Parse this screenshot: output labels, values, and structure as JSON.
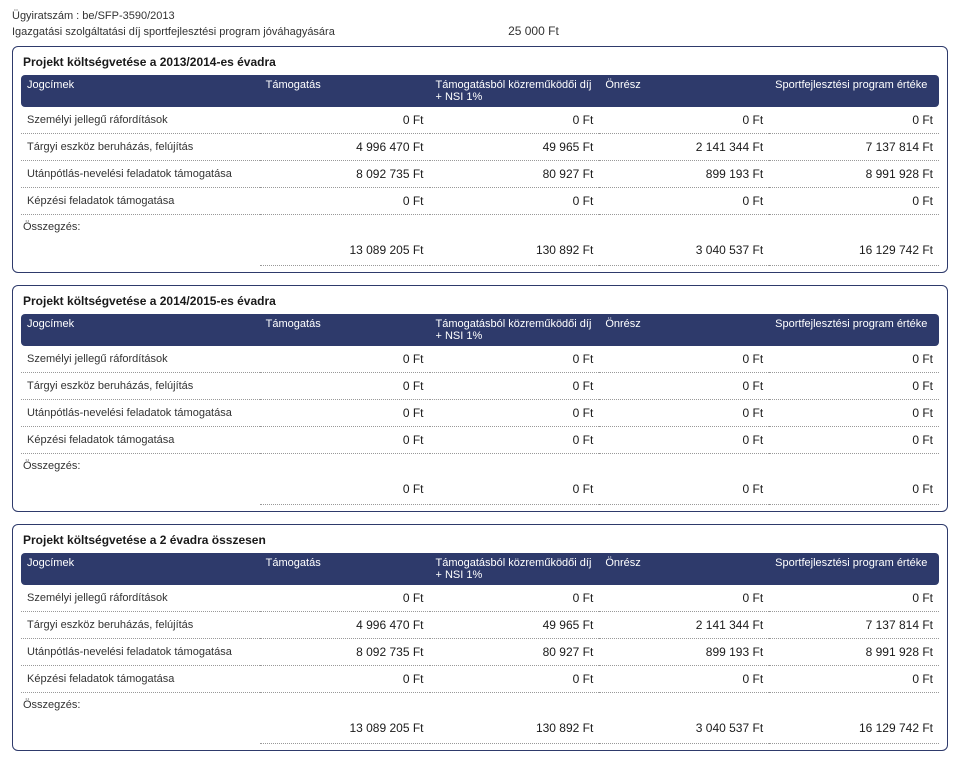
{
  "header": {
    "case_no_label": "Ügyiratszám : be/SFP-3590/2013",
    "fee_label": "Igazgatási szolgáltatási díj sportfejlesztési program jóváhagyására",
    "fee_value": "25 000 Ft"
  },
  "colwidths": {
    "label": "26%",
    "v": "18.5%"
  },
  "columns": {
    "c1": "Jogcímek",
    "c2": "Támogatás",
    "c3": "Támogatásból közreműködői díj + NSI 1%",
    "c4": "Önrész",
    "c5": "Sportfejlesztési program értéke"
  },
  "rows": {
    "r1": "Személyi jellegű ráfordítások",
    "r2": "Tárgyi eszköz beruházás, felújítás",
    "r3": "Utánpótlás-nevelési feladatok támogatása",
    "r4": "Képzési feladatok támogatása"
  },
  "summary_label": "Összegzés:",
  "sections": [
    {
      "title": "Projekt költségvetése a 2013/2014-es évadra",
      "data": {
        "r1": {
          "c2": "0 Ft",
          "c3": "0 Ft",
          "c4": "0 Ft",
          "c5": "0 Ft"
        },
        "r2": {
          "c2": "4 996 470 Ft",
          "c3": "49 965 Ft",
          "c4": "2 141 344 Ft",
          "c5": "7 137 814 Ft"
        },
        "r3": {
          "c2": "8 092 735 Ft",
          "c3": "80 927 Ft",
          "c4": "899 193 Ft",
          "c5": "8 991 928 Ft"
        },
        "r4": {
          "c2": "0 Ft",
          "c3": "0 Ft",
          "c4": "0 Ft",
          "c5": "0 Ft"
        }
      },
      "summary": {
        "c2": "13 089 205 Ft",
        "c3": "130 892 Ft",
        "c4": "3 040 537 Ft",
        "c5": "16 129 742 Ft"
      }
    },
    {
      "title": "Projekt költségvetése a 2014/2015-es évadra",
      "data": {
        "r1": {
          "c2": "0 Ft",
          "c3": "0 Ft",
          "c4": "0 Ft",
          "c5": "0 Ft"
        },
        "r2": {
          "c2": "0 Ft",
          "c3": "0 Ft",
          "c4": "0 Ft",
          "c5": "0 Ft"
        },
        "r3": {
          "c2": "0 Ft",
          "c3": "0 Ft",
          "c4": "0 Ft",
          "c5": "0 Ft"
        },
        "r4": {
          "c2": "0 Ft",
          "c3": "0 Ft",
          "c4": "0 Ft",
          "c5": "0 Ft"
        }
      },
      "summary": {
        "c2": "0 Ft",
        "c3": "0 Ft",
        "c4": "0 Ft",
        "c5": "0 Ft"
      }
    },
    {
      "title": "Projekt költségvetése a 2 évadra összesen",
      "data": {
        "r1": {
          "c2": "0 Ft",
          "c3": "0 Ft",
          "c4": "0 Ft",
          "c5": "0 Ft"
        },
        "r2": {
          "c2": "4 996 470 Ft",
          "c3": "49 965 Ft",
          "c4": "2 141 344 Ft",
          "c5": "7 137 814 Ft"
        },
        "r3": {
          "c2": "8 092 735 Ft",
          "c3": "80 927 Ft",
          "c4": "899 193 Ft",
          "c5": "8 991 928 Ft"
        },
        "r4": {
          "c2": "0 Ft",
          "c3": "0 Ft",
          "c4": "0 Ft",
          "c5": "0 Ft"
        }
      },
      "summary": {
        "c2": "13 089 205 Ft",
        "c3": "130 892 Ft",
        "c4": "3 040 537 Ft",
        "c5": "16 129 742 Ft"
      }
    }
  ]
}
